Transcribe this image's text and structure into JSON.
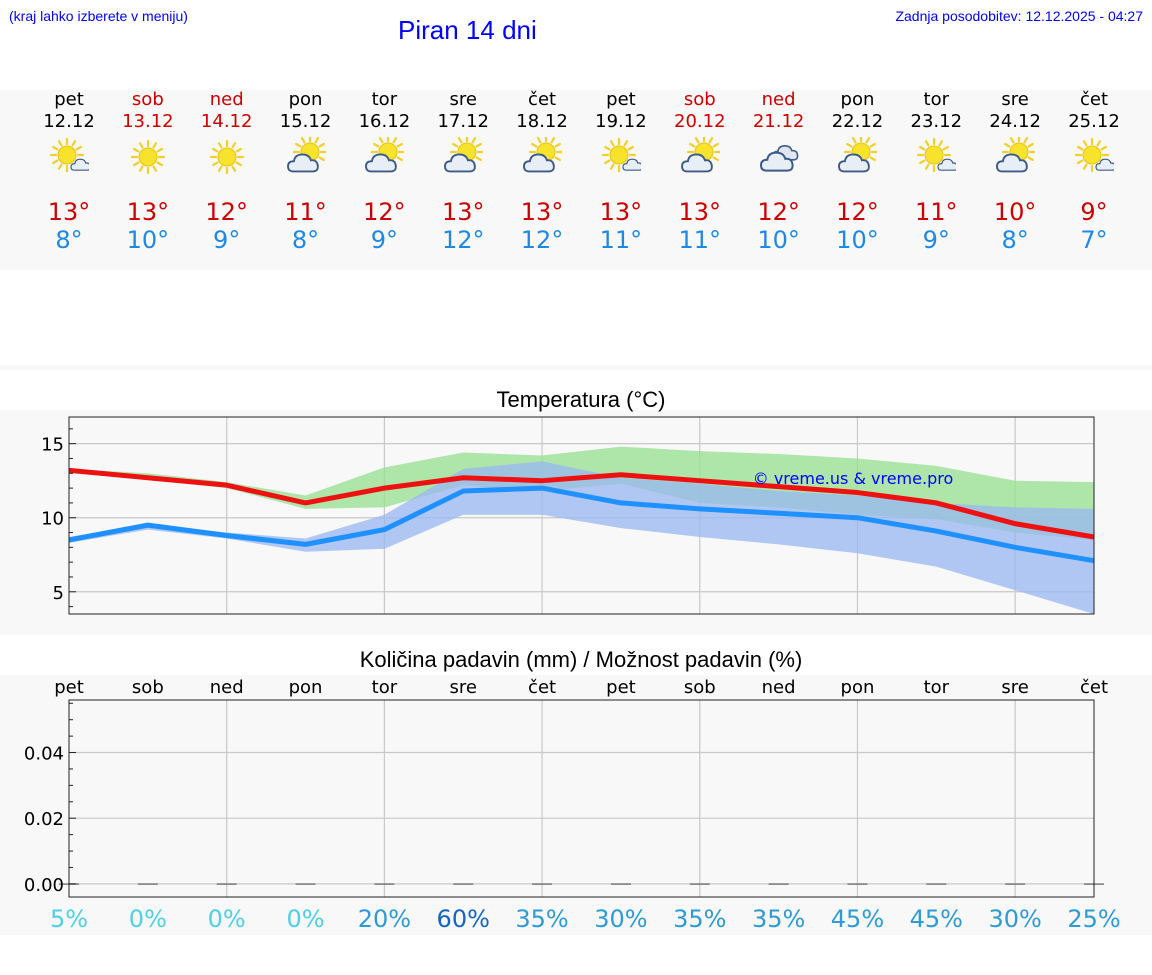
{
  "header": {
    "hint": "(kraj lahko izberete v meniju)",
    "title": "Piran 14 dni",
    "updated": "Zadnja posodobitev: 12.12.2025 - 04:27"
  },
  "colors": {
    "weekend": "#cc0000",
    "tmax": "#cc0000",
    "tmin": "#1e88e5",
    "link": "#0000ff"
  },
  "days": [
    {
      "name": "pet",
      "date": "12.12",
      "weekend": false,
      "icon": "sun-small-cloud-icon",
      "tmax": "13°",
      "tmin": "8°"
    },
    {
      "name": "sob",
      "date": "13.12",
      "weekend": true,
      "icon": "sun-icon",
      "tmax": "13°",
      "tmin": "10°"
    },
    {
      "name": "ned",
      "date": "14.12",
      "weekend": true,
      "icon": "sun-icon",
      "tmax": "12°",
      "tmin": "9°"
    },
    {
      "name": "pon",
      "date": "15.12",
      "weekend": false,
      "icon": "partly-cloudy-icon",
      "tmax": "11°",
      "tmin": "8°"
    },
    {
      "name": "tor",
      "date": "16.12",
      "weekend": false,
      "icon": "partly-cloudy-icon",
      "tmax": "12°",
      "tmin": "9°"
    },
    {
      "name": "sre",
      "date": "17.12",
      "weekend": false,
      "icon": "partly-cloudy-icon",
      "tmax": "13°",
      "tmin": "12°"
    },
    {
      "name": "čet",
      "date": "18.12",
      "weekend": false,
      "icon": "partly-cloudy-icon",
      "tmax": "13°",
      "tmin": "12°"
    },
    {
      "name": "pet",
      "date": "19.12",
      "weekend": false,
      "icon": "sun-small-cloud-icon",
      "tmax": "13°",
      "tmin": "11°"
    },
    {
      "name": "sob",
      "date": "20.12",
      "weekend": true,
      "icon": "partly-cloudy-icon",
      "tmax": "13°",
      "tmin": "11°"
    },
    {
      "name": "ned",
      "date": "21.12",
      "weekend": true,
      "icon": "cloudy-icon",
      "tmax": "12°",
      "tmin": "10°"
    },
    {
      "name": "pon",
      "date": "22.12",
      "weekend": false,
      "icon": "partly-cloudy-icon",
      "tmax": "12°",
      "tmin": "10°"
    },
    {
      "name": "tor",
      "date": "23.12",
      "weekend": false,
      "icon": "sun-small-cloud-icon",
      "tmax": "11°",
      "tmin": "9°"
    },
    {
      "name": "sre",
      "date": "24.12",
      "weekend": false,
      "icon": "partly-cloudy-icon",
      "tmax": "10°",
      "tmin": "8°"
    },
    {
      "name": "čet",
      "date": "25.12",
      "weekend": false,
      "icon": "sun-small-cloud-icon",
      "tmax": "9°",
      "tmin": "7°"
    }
  ],
  "chart_data": [
    {
      "type": "line",
      "title": "Temperatura (°C)",
      "xlabel": "",
      "ylabel": "",
      "x": [
        0,
        1,
        2,
        3,
        4,
        5,
        6,
        7,
        8,
        9,
        10,
        11,
        12,
        13
      ],
      "xlim": [
        0,
        13
      ],
      "ylim": [
        3.5,
        16.8
      ],
      "yticks": [
        5,
        10,
        15
      ],
      "grid": true,
      "watermark": "© vreme.us & vreme.pro",
      "series": [
        {
          "name": "max",
          "color": "#ee1111",
          "values": [
            13.2,
            12.7,
            12.2,
            11.0,
            12.0,
            12.7,
            12.5,
            12.9,
            12.5,
            12.1,
            11.7,
            11.0,
            9.6,
            8.7
          ]
        },
        {
          "name": "min",
          "color": "#1e90ff",
          "values": [
            8.5,
            9.5,
            8.8,
            8.2,
            9.2,
            11.8,
            12.0,
            11.0,
            10.6,
            10.3,
            10.0,
            9.1,
            8.0,
            7.1
          ]
        }
      ],
      "bands": [
        {
          "name": "max-range",
          "color": "#98e092",
          "upper": [
            13.3,
            13.0,
            12.4,
            11.5,
            13.4,
            14.4,
            14.2,
            14.8,
            14.5,
            14.3,
            14.0,
            13.5,
            12.5,
            12.4
          ],
          "lower": [
            13.0,
            12.6,
            12.0,
            10.6,
            10.7,
            12.2,
            11.8,
            12.3,
            11.0,
            10.7,
            10.2,
            9.9,
            9.0,
            8.5
          ]
        },
        {
          "name": "min-range",
          "color": "#9ab8f0",
          "upper": [
            8.7,
            9.6,
            9.0,
            8.6,
            10.2,
            13.3,
            13.8,
            12.7,
            12.3,
            11.8,
            11.5,
            11.0,
            10.7,
            10.6
          ],
          "lower": [
            8.3,
            9.2,
            8.6,
            7.7,
            7.9,
            10.2,
            10.2,
            9.3,
            8.7,
            8.2,
            7.6,
            6.7,
            5.1,
            3.5
          ]
        }
      ]
    },
    {
      "type": "bar",
      "title": "Količina padavin (mm) / Možnost padavin (%)",
      "categories": [
        "pet",
        "sob",
        "ned",
        "pon",
        "tor",
        "sre",
        "čet",
        "pet",
        "sob",
        "ned",
        "pon",
        "tor",
        "sre",
        "čet"
      ],
      "values": [
        0,
        0,
        0,
        0,
        0,
        0,
        0,
        0,
        0,
        0,
        0,
        0,
        0,
        0
      ],
      "ylim": [
        -0.004,
        0.056
      ],
      "yticks": [
        "0.00",
        "0.02",
        "0.04"
      ],
      "ytick_values": [
        0,
        0.02,
        0.04
      ],
      "grid": true,
      "probabilities": [
        "5%",
        "0%",
        "0%",
        "0%",
        "20%",
        "60%",
        "35%",
        "30%",
        "35%",
        "35%",
        "45%",
        "45%",
        "30%",
        "25%"
      ],
      "probability_values": [
        5,
        0,
        0,
        0,
        20,
        60,
        35,
        30,
        35,
        35,
        45,
        45,
        30,
        25
      ]
    }
  ]
}
